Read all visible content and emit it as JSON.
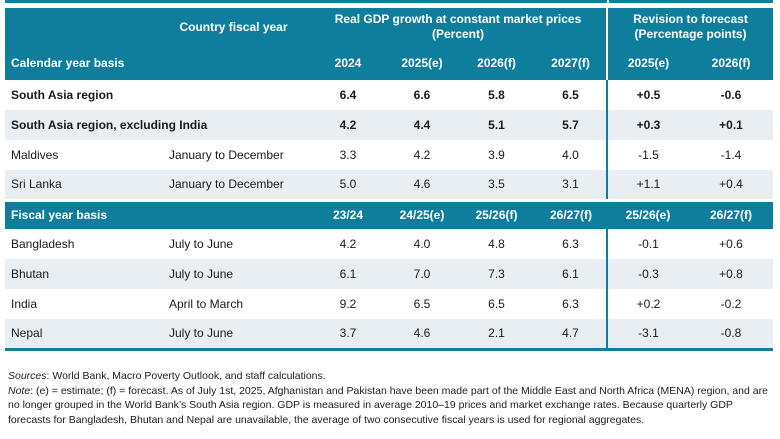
{
  "colors": {
    "teal": "#0f7e9c",
    "row_alt": "#e8eef2",
    "text": "#1a1a1a"
  },
  "header": {
    "country_fiscal_year": "Country fiscal year",
    "gdp_group": "Real GDP growth at constant market prices (Percent)",
    "revision_group": "Revision to forecast (Percentage points)"
  },
  "calendar_section": {
    "label": "Calendar year basis",
    "columns": [
      "2024",
      "2025(e)",
      "2026(f)",
      "2027(f)",
      "2025(e)",
      "2026(f)"
    ],
    "rows": [
      {
        "name": "South Asia region",
        "fiscal_year": "",
        "bold": true,
        "values": [
          "6.4",
          "6.6",
          "5.8",
          "6.5",
          "+0.5",
          "-0.6"
        ]
      },
      {
        "name": "South Asia region, excluding India",
        "fiscal_year": "",
        "bold": true,
        "values": [
          "4.2",
          "4.4",
          "5.1",
          "5.7",
          "+0.3",
          "+0.1"
        ]
      },
      {
        "name": "Maldives",
        "fiscal_year": "January to December",
        "bold": false,
        "values": [
          "3.3",
          "4.2",
          "3.9",
          "4.0",
          "-1.5",
          "-1.4"
        ]
      },
      {
        "name": "Sri Lanka",
        "fiscal_year": "January to December",
        "bold": false,
        "values": [
          "5.0",
          "4.6",
          "3.5",
          "3.1",
          "+1.1",
          "+0.4"
        ]
      }
    ]
  },
  "fiscal_section": {
    "label": "Fiscal year basis",
    "columns": [
      "23/24",
      "24/25(e)",
      "25/26(f)",
      "26/27(f)",
      "25/26(e)",
      "26/27(f)"
    ],
    "rows": [
      {
        "name": "Bangladesh",
        "fiscal_year": "July to June",
        "bold": false,
        "values": [
          "4.2",
          "4.0",
          "4.8",
          "6.3",
          "-0.1",
          "+0.6"
        ]
      },
      {
        "name": "Bhutan",
        "fiscal_year": "July to June",
        "bold": false,
        "values": [
          "6.1",
          "7.0",
          "7.3",
          "6.1",
          "-0.3",
          "+0.8"
        ]
      },
      {
        "name": "India",
        "fiscal_year": "April to March",
        "bold": false,
        "values": [
          "9.2",
          "6.5",
          "6.5",
          "6.3",
          "+0.2",
          "-0.2"
        ]
      },
      {
        "name": "Nepal",
        "fiscal_year": "July to June",
        "bold": false,
        "values": [
          "3.7",
          "4.6",
          "2.1",
          "4.7",
          "-3.1",
          "-0.8"
        ]
      }
    ]
  },
  "footer": {
    "sources_label": "Sources",
    "sources_text": ": World Bank, Macro Poverty Outlook, and staff calculations.",
    "note_label": "Note",
    "note_text": ": (e) = estimate; (f) = forecast. As of July 1st, 2025, Afghanistan and Pakistan have been made part of the Middle East and North Africa (MENA) region, and are no longer grouped in the World Bank’s South Asia region. GDP is measured in average 2010–19 prices and market exchange rates. Because quarterly GDP forecasts for Bangladesh, Bhutan and Nepal are unavailable, the average of two consecutive fiscal years is used for regional aggregates."
  }
}
